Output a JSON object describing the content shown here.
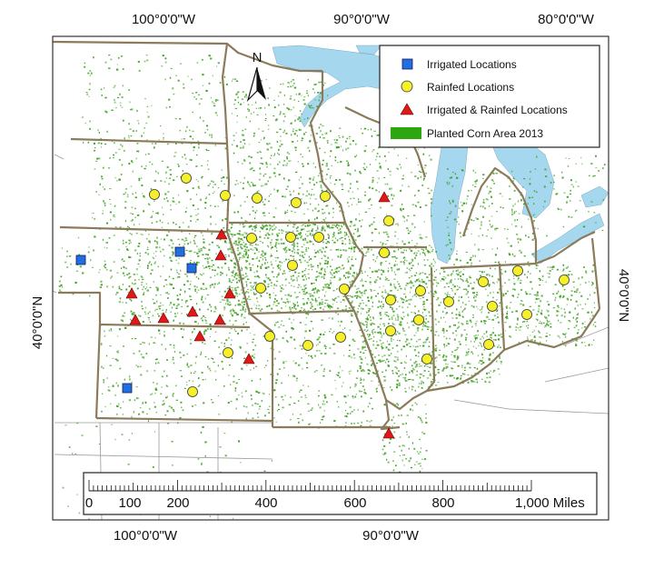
{
  "coordinates": {
    "top": [
      "100°0'0\"W",
      "90°0'0\"W",
      "80°0'0\"W"
    ],
    "bottom": [
      "100°0'0\"W",
      "90°0'0\"W"
    ],
    "left": "40°0'0\"N",
    "right": "40°0'0\"N"
  },
  "north_arrow": {
    "label": "N"
  },
  "legend": {
    "items": [
      {
        "label": "Irrigated Locations",
        "symbol": "square",
        "color": "#1f6fe0"
      },
      {
        "label": "Rainfed Locations",
        "symbol": "circle",
        "color": "#f5f02a"
      },
      {
        "label": "Irrigated & Rainfed Locations",
        "symbol": "triangle",
        "color": "#e01818"
      },
      {
        "label": "Planted Corn Area 2013",
        "symbol": "rect",
        "color": "#2ea60f"
      }
    ]
  },
  "scale_bar": {
    "ticks": [
      "0",
      "100",
      "200",
      "400",
      "600",
      "800",
      "1,000 Miles"
    ]
  },
  "colors": {
    "water": "#a5d8ee",
    "corn": "#3a9e1a",
    "state_border": "#8b7b5a",
    "county_line": "#8f8f8f"
  }
}
